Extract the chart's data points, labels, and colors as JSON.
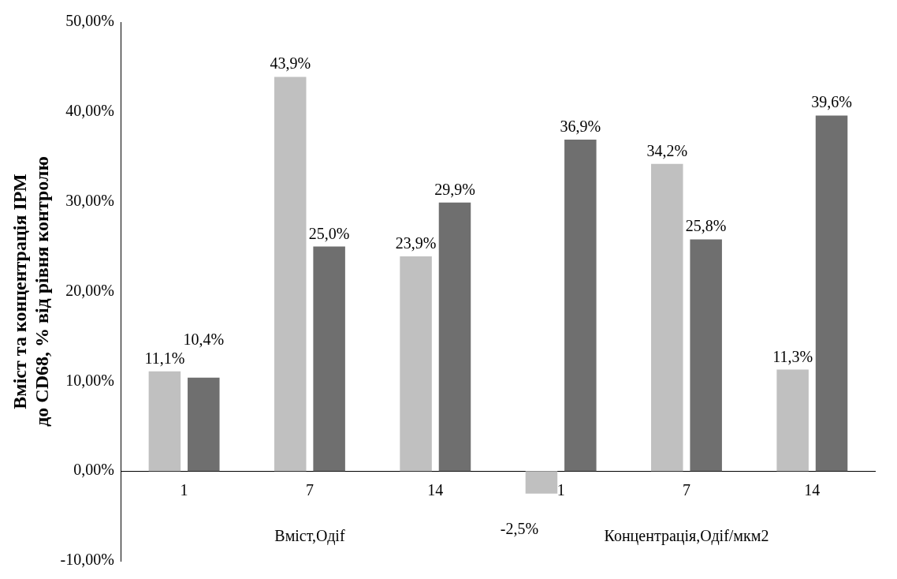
{
  "chart_data": {
    "type": "bar",
    "ylabel": "Вміст та концентрація ІРМ\nдо CD68, % від рівня контролю",
    "categories": [
      "1",
      "7",
      "14",
      "1",
      "7",
      "14"
    ],
    "annotations": [
      "Вміст,Одіf",
      "Концентрація,Одіf/мкм2"
    ],
    "series": [
      {
        "color": "#c0c0c0",
        "values": [
          11.1,
          43.9,
          23.9,
          -2.5,
          34.2,
          11.3
        ],
        "value_labels": [
          "11,1%",
          "43,9%",
          "23,9%",
          "-2,5%",
          "34,2%",
          "11,3%"
        ]
      },
      {
        "color": "#6f6f6f",
        "values": [
          10.4,
          25.0,
          29.9,
          36.9,
          25.8,
          39.6
        ],
        "value_labels": [
          "10,4%",
          "25,0%",
          "29,9%",
          "36,9%",
          "25,8%",
          "39,6%"
        ]
      }
    ],
    "ylim": [
      -10,
      50
    ],
    "yticks": [
      {
        "value": -10,
        "label": "-10,00%"
      },
      {
        "value": 0,
        "label": "0,00%"
      },
      {
        "value": 10,
        "label": "10,00%"
      },
      {
        "value": 20,
        "label": "20,00%"
      },
      {
        "value": 30,
        "label": "30,00%"
      },
      {
        "value": 40,
        "label": "40,00%"
      },
      {
        "value": 50,
        "label": "50,00%"
      }
    ],
    "grid": false,
    "legend": false
  }
}
